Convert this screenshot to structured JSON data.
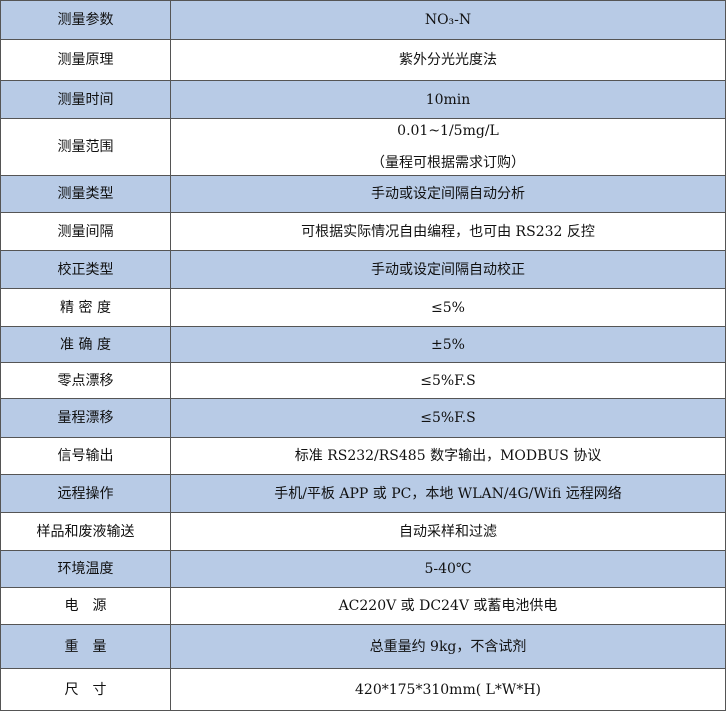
{
  "table": {
    "header": {
      "label": "测量参数",
      "value": [
        "NO₃-N"
      ]
    },
    "rows": [
      {
        "label": "测量原理",
        "value": [
          "紫外分光光度法"
        ]
      },
      {
        "label": "测量时间",
        "value": [
          "10min"
        ]
      },
      {
        "label": "测量范围",
        "value": [
          "0.01~1/5mg/L",
          "（量程可根据需求订购）"
        ]
      },
      {
        "label": "测量类型",
        "value": [
          "手动或设定间隔自动分析"
        ]
      },
      {
        "label": "测量间隔",
        "value": [
          "可根据实际情况自由编程，也可由 RS232 反控"
        ]
      },
      {
        "label": "校正类型",
        "value": [
          "手动或设定间隔自动校正"
        ]
      },
      {
        "label": "精 密 度",
        "value": [
          "≤5%"
        ]
      },
      {
        "label": "准 确 度",
        "value": [
          "±5%"
        ]
      },
      {
        "label": "零点漂移",
        "value": [
          "≤5%F.S"
        ]
      },
      {
        "label": "量程漂移",
        "value": [
          "≤5%F.S"
        ]
      },
      {
        "label": "信号输出",
        "value": [
          "标准 RS232/RS485 数字输出，MODBUS 协议"
        ]
      },
      {
        "label": "远程操作",
        "value": [
          "手机/平板 APP 或 PC，本地 WLAN/4G/Wifi 远程网络"
        ]
      },
      {
        "label": "样品和废液输送",
        "value": [
          "自动采样和过滤"
        ]
      },
      {
        "label": "环境温度",
        "value": [
          "5-40℃"
        ]
      },
      {
        "label": "电　源",
        "value": [
          "AC220V 或 DC24V 或蓄电池供电"
        ]
      },
      {
        "label": "重　量",
        "value": [
          "总重量约 9kg，不含试剂"
        ]
      },
      {
        "label": "尺　寸",
        "value": [
          "420*175*310mm( L*W*H)"
        ]
      }
    ]
  }
}
